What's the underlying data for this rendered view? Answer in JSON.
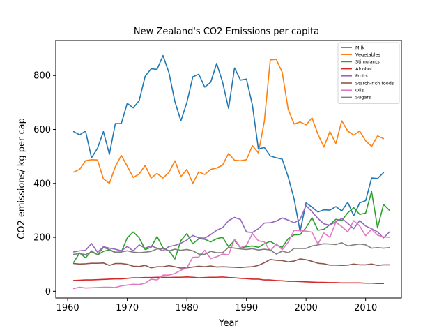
{
  "chart_data": {
    "type": "line",
    "title": "New Zealand's CO2 Emissions per capita",
    "xlabel": "Year",
    "ylabel": "CO2 emissions/ kg per cap",
    "xlim": [
      1958,
      2016
    ],
    "ylim": [
      -25,
      930
    ],
    "xticks": [
      1960,
      1970,
      1980,
      1990,
      2000,
      2010
    ],
    "yticks": [
      0,
      200,
      400,
      600,
      800
    ],
    "grid": false,
    "legend_position": "top-right",
    "x_start": 1961,
    "series": [
      {
        "name": "Milk",
        "color": "#1f77b4",
        "values": [
          592,
          580,
          594,
          495,
          530,
          592,
          508,
          622,
          622,
          697,
          680,
          707,
          797,
          825,
          823,
          874,
          810,
          703,
          632,
          700,
          795,
          805,
          757,
          775,
          845,
          775,
          678,
          828,
          783,
          787,
          690,
          528,
          533,
          502,
          495,
          490,
          424,
          342,
          222,
          328,
          312,
          294,
          302,
          301,
          314,
          298,
          330,
          280,
          328,
          336,
          420,
          418,
          440
        ]
      },
      {
        "name": "Vegetables",
        "color": "#ff7f0e",
        "values": [
          442,
          452,
          484,
          488,
          487,
          417,
          400,
          462,
          504,
          464,
          422,
          435,
          467,
          420,
          437,
          420,
          441,
          484,
          425,
          452,
          400,
          443,
          433,
          452,
          457,
          468,
          511,
          486,
          484,
          488,
          540,
          513,
          630,
          858,
          860,
          812,
          675,
          620,
          628,
          617,
          643,
          582,
          535,
          592,
          548,
          632,
          594,
          579,
          594,
          558,
          537,
          576,
          566
        ]
      },
      {
        "name": "Stimulants",
        "color": "#2ca02c",
        "values": [
          107,
          142,
          124,
          150,
          135,
          148,
          154,
          143,
          145,
          198,
          220,
          198,
          155,
          163,
          203,
          161,
          150,
          120,
          188,
          214,
          176,
          195,
          193,
          183,
          195,
          200,
          165,
          188,
          161,
          165,
          168,
          163,
          176,
          185,
          172,
          163,
          195,
          209,
          210,
          236,
          273,
          226,
          230,
          247,
          267,
          262,
          291,
          310,
          285,
          290,
          370,
          235,
          322,
          300
        ]
      },
      {
        "name": "Alcohol",
        "color": "#d62728",
        "values": [
          40,
          41,
          42,
          42,
          43,
          44,
          45,
          46,
          46,
          48,
          50,
          50,
          51,
          51,
          52,
          52,
          51,
          52,
          52,
          53,
          52,
          50,
          51,
          52,
          52,
          53,
          51,
          50,
          48,
          47,
          45,
          45,
          42,
          42,
          40,
          39,
          37,
          37,
          36,
          35,
          34,
          33,
          33,
          32,
          32,
          31,
          31,
          31,
          31,
          30,
          30,
          29,
          29
        ]
      },
      {
        "name": "Fruits",
        "color": "#9467bd",
        "values": [
          146,
          150,
          152,
          177,
          145,
          165,
          160,
          156,
          150,
          166,
          150,
          172,
          160,
          168,
          160,
          150,
          166,
          170,
          178,
          190,
          207,
          198,
          197,
          210,
          226,
          236,
          262,
          274,
          266,
          220,
          218,
          232,
          253,
          254,
          260,
          272,
          264,
          254,
          266,
          318,
          295,
          270,
          250,
          245,
          258,
          270,
          252,
          232,
          262,
          242,
          232,
          220,
          198,
          220
        ]
      },
      {
        "name": "Starch-rich foods",
        "color": "#8c564b",
        "values": [
          103,
          101,
          102,
          104,
          104,
          105,
          96,
          103,
          103,
          100,
          93,
          92,
          96,
          87,
          91,
          91,
          95,
          91,
          86,
          87,
          90,
          93,
          91,
          94,
          90,
          91,
          90,
          89,
          88,
          90,
          91,
          96,
          106,
          118,
          115,
          114,
          109,
          112,
          120,
          117,
          111,
          104,
          102,
          97,
          97,
          96,
          97,
          101,
          98,
          98,
          101,
          96,
          98,
          98
        ]
      },
      {
        "name": "Oils",
        "color": "#e377c2",
        "values": [
          10,
          15,
          12,
          13,
          14,
          15,
          15,
          14,
          20,
          23,
          26,
          25,
          30,
          45,
          42,
          60,
          60,
          66,
          78,
          87,
          126,
          127,
          152,
          121,
          128,
          138,
          135,
          193,
          162,
          170,
          214,
          187,
          183,
          149,
          176,
          154,
          182,
          226,
          225,
          223,
          219,
          175,
          216,
          200,
          256,
          240,
          220,
          262,
          242,
          206,
          230,
          208,
          202,
          200
        ]
      },
      {
        "name": "Sugars",
        "color": "#7f7f7f",
        "values": [
          137,
          140,
          136,
          146,
          136,
          162,
          155,
          145,
          146,
          150,
          145,
          143,
          145,
          148,
          157,
          158,
          150,
          156,
          152,
          155,
          150,
          138,
          137,
          148,
          143,
          143,
          163,
          160,
          157,
          155,
          158,
          153,
          156,
          153,
          138,
          149,
          143,
          159,
          159,
          159,
          168,
          172,
          176,
          175,
          173,
          180,
          168,
          172,
          175,
          172,
          160,
          162,
          160,
          162
        ]
      }
    ]
  }
}
